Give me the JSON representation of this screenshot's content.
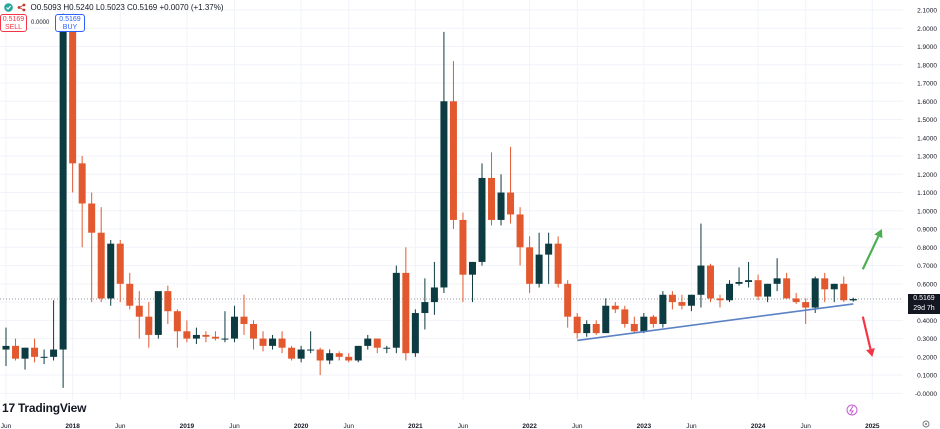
{
  "header": {
    "ohlc_text": "O0.5093 H0.5240 L0.5023 C0.5169 +0.0070 (+1.37%)",
    "sell_price": "0.5169",
    "sell_label": "SELL",
    "spread": "0.0000",
    "buy_price": "0.5169",
    "buy_label": "BUY"
  },
  "brand": {
    "logo_text": "TradingView",
    "logo_mark": "17"
  },
  "price_label": {
    "value": "0.5169",
    "countdown": "29d 7h"
  },
  "colors": {
    "up": "#0d3b42",
    "down": "#e3592f",
    "trendline": "#5c82c4",
    "arrow_up": "#4caf50",
    "arrow_down": "#f23645",
    "grid": "#f0f3fa"
  },
  "chart_data": {
    "type": "candlestick",
    "interval": "1M",
    "ylim": [
      -0.02,
      2.1
    ],
    "y_ticks": [
      "2.1000",
      "2.0000",
      "1.9000",
      "1.8000",
      "1.7000",
      "1.6000",
      "1.5000",
      "1.4000",
      "1.3000",
      "1.2000",
      "1.1000",
      "1.0000",
      "0.9000",
      "0.8000",
      "0.7000",
      "0.6000",
      "0.5000",
      "0.4000",
      "0.3000",
      "0.2000",
      "0.1000",
      "-0.0000"
    ],
    "x_ticks": [
      {
        "label": "Jun",
        "date": "2017-06"
      },
      {
        "label": "2018",
        "date": "2018-01"
      },
      {
        "label": "Jun",
        "date": "2018-06"
      },
      {
        "label": "2019",
        "date": "2019-01"
      },
      {
        "label": "Jun",
        "date": "2019-06"
      },
      {
        "label": "2020",
        "date": "2020-01"
      },
      {
        "label": "Jun",
        "date": "2020-06"
      },
      {
        "label": "2021",
        "date": "2021-01"
      },
      {
        "label": "Jun",
        "date": "2021-06"
      },
      {
        "label": "2022",
        "date": "2022-01"
      },
      {
        "label": "Jun",
        "date": "2022-06"
      },
      {
        "label": "2023",
        "date": "2023-01"
      },
      {
        "label": "Jun",
        "date": "2023-06"
      },
      {
        "label": "2024",
        "date": "2024-01"
      },
      {
        "label": "Jun",
        "date": "2024-06"
      },
      {
        "label": "2025",
        "date": "2025-01"
      }
    ],
    "candles": [
      {
        "t": "2017-06",
        "o": 0.24,
        "h": 0.36,
        "l": 0.15,
        "c": 0.26
      },
      {
        "t": "2017-07",
        "o": 0.26,
        "h": 0.3,
        "l": 0.18,
        "c": 0.19
      },
      {
        "t": "2017-08",
        "o": 0.19,
        "h": 0.25,
        "l": 0.13,
        "c": 0.25
      },
      {
        "t": "2017-09",
        "o": 0.25,
        "h": 0.3,
        "l": 0.17,
        "c": 0.2
      },
      {
        "t": "2017-10",
        "o": 0.2,
        "h": 0.24,
        "l": 0.16,
        "c": 0.2
      },
      {
        "t": "2017-11",
        "o": 0.2,
        "h": 0.51,
        "l": 0.18,
        "c": 0.24
      },
      {
        "t": "2017-12",
        "o": 0.24,
        "h": 2.08,
        "l": 0.03,
        "c": 2.0
      },
      {
        "t": "2018-01",
        "o": 2.0,
        "h": 2.0,
        "l": 1.1,
        "c": 1.26
      },
      {
        "t": "2018-02",
        "o": 1.26,
        "h": 1.3,
        "l": 0.8,
        "c": 1.04
      },
      {
        "t": "2018-03",
        "o": 1.04,
        "h": 1.1,
        "l": 0.5,
        "c": 0.88
      },
      {
        "t": "2018-04",
        "o": 0.88,
        "h": 1.02,
        "l": 0.5,
        "c": 0.52
      },
      {
        "t": "2018-05",
        "o": 0.52,
        "h": 0.84,
        "l": 0.48,
        "c": 0.82
      },
      {
        "t": "2018-06",
        "o": 0.82,
        "h": 0.84,
        "l": 0.5,
        "c": 0.6
      },
      {
        "t": "2018-07",
        "o": 0.6,
        "h": 0.66,
        "l": 0.46,
        "c": 0.48
      },
      {
        "t": "2018-08",
        "o": 0.48,
        "h": 0.56,
        "l": 0.3,
        "c": 0.42
      },
      {
        "t": "2018-09",
        "o": 0.42,
        "h": 0.5,
        "l": 0.25,
        "c": 0.32
      },
      {
        "t": "2018-10",
        "o": 0.32,
        "h": 0.54,
        "l": 0.3,
        "c": 0.56
      },
      {
        "t": "2018-11",
        "o": 0.56,
        "h": 0.59,
        "l": 0.38,
        "c": 0.45
      },
      {
        "t": "2018-12",
        "o": 0.45,
        "h": 0.46,
        "l": 0.25,
        "c": 0.34
      },
      {
        "t": "2019-01",
        "o": 0.34,
        "h": 0.4,
        "l": 0.28,
        "c": 0.3
      },
      {
        "t": "2019-02",
        "o": 0.3,
        "h": 0.36,
        "l": 0.27,
        "c": 0.32
      },
      {
        "t": "2019-03",
        "o": 0.32,
        "h": 0.34,
        "l": 0.28,
        "c": 0.31
      },
      {
        "t": "2019-04",
        "o": 0.31,
        "h": 0.34,
        "l": 0.29,
        "c": 0.3
      },
      {
        "t": "2019-05",
        "o": 0.3,
        "h": 0.45,
        "l": 0.28,
        "c": 0.3
      },
      {
        "t": "2019-06",
        "o": 0.3,
        "h": 0.48,
        "l": 0.28,
        "c": 0.42
      },
      {
        "t": "2019-07",
        "o": 0.42,
        "h": 0.54,
        "l": 0.32,
        "c": 0.38
      },
      {
        "t": "2019-08",
        "o": 0.38,
        "h": 0.4,
        "l": 0.24,
        "c": 0.3
      },
      {
        "t": "2019-09",
        "o": 0.3,
        "h": 0.34,
        "l": 0.23,
        "c": 0.26
      },
      {
        "t": "2019-10",
        "o": 0.26,
        "h": 0.32,
        "l": 0.24,
        "c": 0.3
      },
      {
        "t": "2019-11",
        "o": 0.3,
        "h": 0.34,
        "l": 0.22,
        "c": 0.25
      },
      {
        "t": "2019-12",
        "o": 0.25,
        "h": 0.26,
        "l": 0.18,
        "c": 0.19
      },
      {
        "t": "2020-01",
        "o": 0.19,
        "h": 0.26,
        "l": 0.17,
        "c": 0.24
      },
      {
        "t": "2020-02",
        "o": 0.24,
        "h": 0.34,
        "l": 0.22,
        "c": 0.24
      },
      {
        "t": "2020-03",
        "o": 0.24,
        "h": 0.25,
        "l": 0.1,
        "c": 0.18
      },
      {
        "t": "2020-04",
        "o": 0.18,
        "h": 0.24,
        "l": 0.16,
        "c": 0.22
      },
      {
        "t": "2020-05",
        "o": 0.22,
        "h": 0.23,
        "l": 0.18,
        "c": 0.2
      },
      {
        "t": "2020-06",
        "o": 0.2,
        "h": 0.22,
        "l": 0.17,
        "c": 0.18
      },
      {
        "t": "2020-07",
        "o": 0.18,
        "h": 0.26,
        "l": 0.17,
        "c": 0.26
      },
      {
        "t": "2020-08",
        "o": 0.26,
        "h": 0.32,
        "l": 0.24,
        "c": 0.3
      },
      {
        "t": "2020-09",
        "o": 0.3,
        "h": 0.3,
        "l": 0.22,
        "c": 0.25
      },
      {
        "t": "2020-10",
        "o": 0.25,
        "h": 0.26,
        "l": 0.22,
        "c": 0.25
      },
      {
        "t": "2020-11",
        "o": 0.25,
        "h": 0.7,
        "l": 0.22,
        "c": 0.66
      },
      {
        "t": "2020-12",
        "o": 0.66,
        "h": 0.8,
        "l": 0.18,
        "c": 0.22
      },
      {
        "t": "2021-01",
        "o": 0.22,
        "h": 0.46,
        "l": 0.2,
        "c": 0.44
      },
      {
        "t": "2021-02",
        "o": 0.44,
        "h": 0.63,
        "l": 0.35,
        "c": 0.5
      },
      {
        "t": "2021-03",
        "o": 0.5,
        "h": 0.72,
        "l": 0.43,
        "c": 0.58
      },
      {
        "t": "2021-04",
        "o": 0.58,
        "h": 1.98,
        "l": 0.55,
        "c": 1.6
      },
      {
        "t": "2021-05",
        "o": 1.6,
        "h": 1.82,
        "l": 0.9,
        "c": 0.95
      },
      {
        "t": "2021-06",
        "o": 0.95,
        "h": 0.99,
        "l": 0.5,
        "c": 0.65
      },
      {
        "t": "2021-07",
        "o": 0.65,
        "h": 0.72,
        "l": 0.5,
        "c": 0.72
      },
      {
        "t": "2021-08",
        "o": 0.72,
        "h": 1.26,
        "l": 0.7,
        "c": 1.18
      },
      {
        "t": "2021-09",
        "o": 1.18,
        "h": 1.32,
        "l": 0.92,
        "c": 0.95
      },
      {
        "t": "2021-10",
        "o": 0.95,
        "h": 1.2,
        "l": 0.92,
        "c": 1.1
      },
      {
        "t": "2021-11",
        "o": 1.1,
        "h": 1.35,
        "l": 0.93,
        "c": 0.98
      },
      {
        "t": "2021-12",
        "o": 0.98,
        "h": 1.02,
        "l": 0.7,
        "c": 0.8
      },
      {
        "t": "2022-01",
        "o": 0.8,
        "h": 0.86,
        "l": 0.55,
        "c": 0.6
      },
      {
        "t": "2022-02",
        "o": 0.6,
        "h": 0.88,
        "l": 0.58,
        "c": 0.76
      },
      {
        "t": "2022-03",
        "o": 0.76,
        "h": 0.88,
        "l": 0.6,
        "c": 0.82
      },
      {
        "t": "2022-04",
        "o": 0.82,
        "h": 0.86,
        "l": 0.58,
        "c": 0.6
      },
      {
        "t": "2022-05",
        "o": 0.6,
        "h": 0.62,
        "l": 0.36,
        "c": 0.42
      },
      {
        "t": "2022-06",
        "o": 0.42,
        "h": 0.44,
        "l": 0.3,
        "c": 0.33
      },
      {
        "t": "2022-07",
        "o": 0.33,
        "h": 0.4,
        "l": 0.31,
        "c": 0.38
      },
      {
        "t": "2022-08",
        "o": 0.38,
        "h": 0.4,
        "l": 0.32,
        "c": 0.33
      },
      {
        "t": "2022-09",
        "o": 0.33,
        "h": 0.52,
        "l": 0.33,
        "c": 0.48
      },
      {
        "t": "2022-10",
        "o": 0.48,
        "h": 0.5,
        "l": 0.44,
        "c": 0.46
      },
      {
        "t": "2022-11",
        "o": 0.46,
        "h": 0.48,
        "l": 0.36,
        "c": 0.38
      },
      {
        "t": "2022-12",
        "o": 0.38,
        "h": 0.42,
        "l": 0.33,
        "c": 0.34
      },
      {
        "t": "2023-01",
        "o": 0.34,
        "h": 0.44,
        "l": 0.33,
        "c": 0.42
      },
      {
        "t": "2023-02",
        "o": 0.42,
        "h": 0.43,
        "l": 0.36,
        "c": 0.38
      },
      {
        "t": "2023-03",
        "o": 0.38,
        "h": 0.56,
        "l": 0.36,
        "c": 0.54
      },
      {
        "t": "2023-04",
        "o": 0.54,
        "h": 0.56,
        "l": 0.46,
        "c": 0.5
      },
      {
        "t": "2023-05",
        "o": 0.5,
        "h": 0.54,
        "l": 0.46,
        "c": 0.48
      },
      {
        "t": "2023-06",
        "o": 0.48,
        "h": 0.54,
        "l": 0.45,
        "c": 0.54
      },
      {
        "t": "2023-07",
        "o": 0.54,
        "h": 0.93,
        "l": 0.47,
        "c": 0.7
      },
      {
        "t": "2023-08",
        "o": 0.7,
        "h": 0.71,
        "l": 0.5,
        "c": 0.52
      },
      {
        "t": "2023-09",
        "o": 0.52,
        "h": 0.54,
        "l": 0.47,
        "c": 0.51
      },
      {
        "t": "2023-10",
        "o": 0.51,
        "h": 0.62,
        "l": 0.5,
        "c": 0.6
      },
      {
        "t": "2023-11",
        "o": 0.6,
        "h": 0.69,
        "l": 0.59,
        "c": 0.61
      },
      {
        "t": "2023-12",
        "o": 0.61,
        "h": 0.72,
        "l": 0.58,
        "c": 0.62
      },
      {
        "t": "2024-01",
        "o": 0.62,
        "h": 0.65,
        "l": 0.51,
        "c": 0.53
      },
      {
        "t": "2024-02",
        "o": 0.53,
        "h": 0.6,
        "l": 0.5,
        "c": 0.6
      },
      {
        "t": "2024-03",
        "o": 0.6,
        "h": 0.74,
        "l": 0.56,
        "c": 0.63
      },
      {
        "t": "2024-04",
        "o": 0.63,
        "h": 0.66,
        "l": 0.52,
        "c": 0.52
      },
      {
        "t": "2024-05",
        "o": 0.52,
        "h": 0.55,
        "l": 0.49,
        "c": 0.5
      },
      {
        "t": "2024-06",
        "o": 0.5,
        "h": 0.52,
        "l": 0.38,
        "c": 0.47
      },
      {
        "t": "2024-07",
        "o": 0.47,
        "h": 0.64,
        "l": 0.44,
        "c": 0.63
      },
      {
        "t": "2024-08",
        "o": 0.63,
        "h": 0.66,
        "l": 0.5,
        "c": 0.57
      },
      {
        "t": "2024-09",
        "o": 0.57,
        "h": 0.6,
        "l": 0.5,
        "c": 0.6
      },
      {
        "t": "2024-10",
        "o": 0.6,
        "h": 0.64,
        "l": 0.5,
        "c": 0.51
      },
      {
        "t": "2024-11",
        "o": 0.5093,
        "h": 0.524,
        "l": 0.5023,
        "c": 0.5169
      }
    ],
    "annotations": {
      "trendline": [
        {
          "t": "2022-06",
          "y": 0.29
        },
        {
          "t": "2024-11",
          "y": 0.49
        }
      ],
      "arrow_up": [
        {
          "t": "2024-12",
          "y": 0.68
        },
        {
          "t": "2025-02",
          "y": 0.9
        }
      ],
      "arrow_down": [
        {
          "t": "2024-12",
          "y": 0.42
        },
        {
          "t": "2025-01",
          "y": 0.2
        }
      ],
      "current_price": 0.5169
    }
  }
}
